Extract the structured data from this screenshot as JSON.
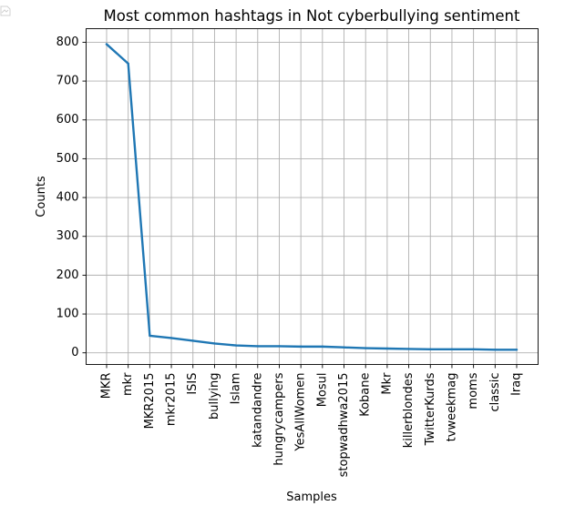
{
  "chart_data": {
    "type": "line",
    "title": "Most common hashtags in Not cyberbullying sentiment",
    "xlabel": "Samples",
    "ylabel": "Counts",
    "categories": [
      "MKR",
      "mkr",
      "MKR2015",
      "mkr2015",
      "ISIS",
      "bullying",
      "Islam",
      "katandandre",
      "hungrycampers",
      "YesAllWomen",
      "Mosul",
      "stopwadhwa2015",
      "Kobane",
      "Mkr",
      "killerblondes",
      "TwitterKurds",
      "tvweekmag",
      "moms",
      "classic",
      "Iraq"
    ],
    "series": [
      {
        "values": [
          795,
          745,
          44,
          38,
          31,
          24,
          19,
          17,
          17,
          16,
          16,
          14,
          12,
          11,
          10,
          9,
          9,
          9,
          8,
          8
        ],
        "color": "#1f77b4"
      }
    ],
    "ylim": [
      -30,
      835
    ],
    "yticks": [
      0,
      100,
      200,
      300,
      400,
      500,
      600,
      700,
      800
    ],
    "ytick_labels": [
      "0",
      "100",
      "200",
      "300",
      "400",
      "500",
      "600",
      "700",
      "800"
    ],
    "grid": true,
    "legend": "none"
  }
}
